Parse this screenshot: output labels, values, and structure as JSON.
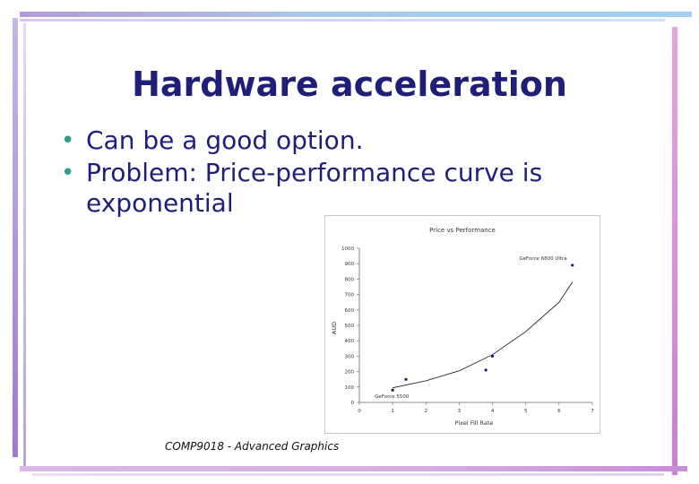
{
  "slide": {
    "title": "Hardware acceleration",
    "bullets": [
      "Can be a good option.",
      "Problem: Price-performance curve is exponential"
    ],
    "footer": "COMP9018 - Advanced Graphics",
    "colors": {
      "title": "#1f1f7a",
      "bullet_marker": "#2f9e8f"
    }
  },
  "chart_data": {
    "type": "scatter",
    "title": "Price vs Performance",
    "xlabel": "Pixel Fill Rate",
    "ylabel": "AUD",
    "xlim": [
      0,
      7
    ],
    "ylim": [
      0,
      1000
    ],
    "x_ticks": [
      "0",
      "1",
      "2",
      "3",
      "4",
      "5",
      "6",
      "7"
    ],
    "y_ticks": [
      "0",
      "100",
      "200",
      "300",
      "400",
      "500",
      "600",
      "700",
      "800",
      "900",
      "1000"
    ],
    "points": [
      {
        "x": 1.0,
        "y": 80
      },
      {
        "x": 1.4,
        "y": 150
      },
      {
        "x": 3.8,
        "y": 210
      },
      {
        "x": 4.0,
        "y": 300
      },
      {
        "x": 6.4,
        "y": 890
      }
    ],
    "trend_curve": [
      {
        "x": 1.0,
        "y": 95
      },
      {
        "x": 2.0,
        "y": 140
      },
      {
        "x": 3.0,
        "y": 205
      },
      {
        "x": 4.0,
        "y": 310
      },
      {
        "x": 5.0,
        "y": 460
      },
      {
        "x": 6.0,
        "y": 650
      },
      {
        "x": 6.4,
        "y": 780
      }
    ],
    "annotations": [
      {
        "label": "GeForce 5500",
        "x": 1.0,
        "y": 80
      },
      {
        "label": "GeForce 6800 Ultra",
        "x": 6.4,
        "y": 890
      }
    ],
    "grid": false
  }
}
